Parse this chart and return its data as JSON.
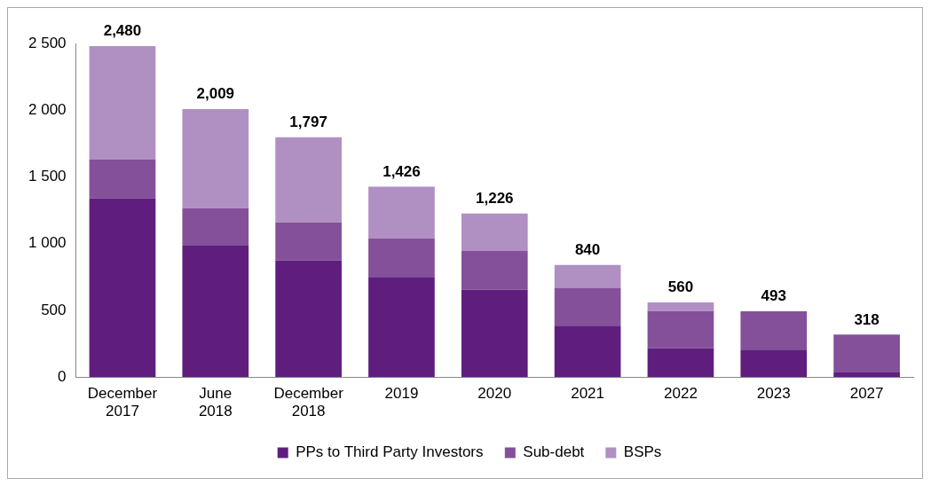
{
  "chart_data": {
    "type": "bar",
    "stacked": true,
    "categories": [
      "December 2017",
      "June 2018",
      "December 2018",
      "2019",
      "2020",
      "2021",
      "2022",
      "2023",
      "2027"
    ],
    "series": [
      {
        "name": "PPs to Third Party Investors",
        "color": "#5f1e7e",
        "values": [
          1340,
          985,
          875,
          750,
          655,
          385,
          215,
          205,
          35
        ]
      },
      {
        "name": "Sub-debt",
        "color": "#84509a",
        "values": [
          290,
          280,
          285,
          290,
          290,
          285,
          280,
          288,
          283
        ]
      },
      {
        "name": "BSPs",
        "color": "#b08fc3",
        "values": [
          850,
          744,
          637,
          386,
          281,
          170,
          65,
          0,
          0
        ]
      }
    ],
    "totals": [
      "2,480",
      "2,009",
      "1,797",
      "1,426",
      "1,226",
      "840",
      "560",
      "493",
      "318"
    ],
    "ylim": [
      0,
      2500
    ],
    "yticks": [
      0,
      500,
      {
        "value": 1000,
        "label": "1 000"
      },
      {
        "value": 1500,
        "label": "1 500"
      },
      {
        "value": 2000,
        "label": "2 000"
      },
      {
        "value": 2500,
        "label": "2 500"
      }
    ],
    "grid": false,
    "legend": "bottom"
  }
}
